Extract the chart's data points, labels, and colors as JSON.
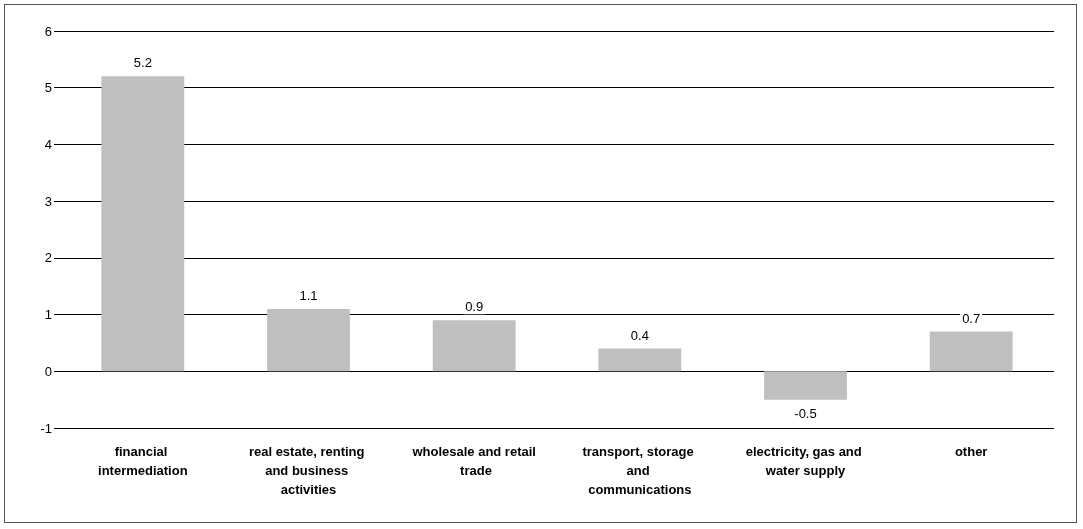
{
  "chart_data": {
    "type": "bar",
    "categories": [
      "financial intermediation",
      "real estate, renting and business activities",
      "wholesale and retail trade",
      "transport, storage and communications",
      "electricity, gas and water supply",
      "other"
    ],
    "values": [
      5.2,
      1.1,
      0.9,
      0.4,
      -0.5,
      0.7
    ],
    "color": "#bfbfbf",
    "ylim": [
      -1,
      6
    ],
    "yticks": [
      -1,
      0,
      1,
      2,
      3,
      4,
      5,
      6
    ],
    "grid": "y",
    "data_labels": true
  }
}
